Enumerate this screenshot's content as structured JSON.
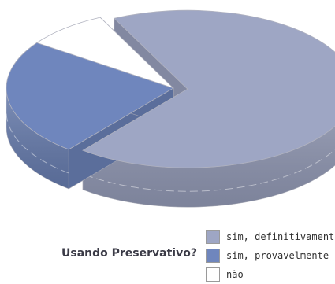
{
  "chart_data": {
    "type": "pie",
    "title": "",
    "categories": [
      "sim, definitivamente",
      "sim, provavelmente",
      "não"
    ],
    "values": [
      68,
      24,
      8
    ],
    "colors": [
      "#9ea6c4",
      "#6f86bd",
      "#ffffff"
    ],
    "legend_placement": "bottom-right"
  },
  "question_label": "Usando Preservativo?"
}
